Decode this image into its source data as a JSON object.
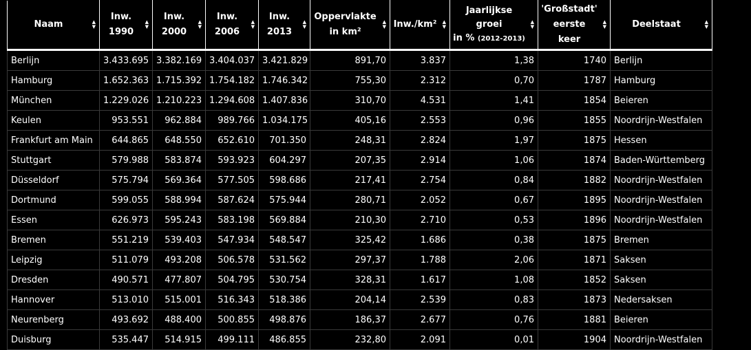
{
  "table": {
    "headers": [
      {
        "line1": "Naam",
        "line2": "",
        "sub": ""
      },
      {
        "line1": "Inw.",
        "line2": "1990",
        "sub": ""
      },
      {
        "line1": "Inw.",
        "line2": "2000",
        "sub": ""
      },
      {
        "line1": "Inw.",
        "line2": "2006",
        "sub": ""
      },
      {
        "line1": "Inw.",
        "line2": "2013",
        "sub": ""
      },
      {
        "line1": "Oppervlakte",
        "line2": "in km²",
        "sub": ""
      },
      {
        "line1": "Inw./km²",
        "line2": "",
        "sub": ""
      },
      {
        "line1": "Jaarlijkse",
        "line2": "groei",
        "line3": "in %",
        "sub": "(2012-2013)"
      },
      {
        "line1": "'Großstadt'",
        "line2": "eerste keer",
        "sub": ""
      },
      {
        "line1": "Deelstaat",
        "line2": "",
        "sub": ""
      }
    ],
    "rows": [
      [
        "Berlijn",
        "3.433.695",
        "3.382.169",
        "3.404.037",
        "3.421.829",
        "891,70",
        "3.837",
        "1,38",
        "1740",
        "Berlijn"
      ],
      [
        "Hamburg",
        "1.652.363",
        "1.715.392",
        "1.754.182",
        "1.746.342",
        "755,30",
        "2.312",
        "0,70",
        "1787",
        "Hamburg"
      ],
      [
        "München",
        "1.229.026",
        "1.210.223",
        "1.294.608",
        "1.407.836",
        "310,70",
        "4.531",
        "1,41",
        "1854",
        "Beieren"
      ],
      [
        "Keulen",
        "953.551",
        "962.884",
        "989.766",
        "1.034.175",
        "405,16",
        "2.553",
        "0,96",
        "1855",
        "Noordrijn-Westfalen"
      ],
      [
        "Frankfurt am Main",
        "644.865",
        "648.550",
        "652.610",
        "701.350",
        "248,31",
        "2.824",
        "1,97",
        "1875",
        "Hessen"
      ],
      [
        "Stuttgart",
        "579.988",
        "583.874",
        "593.923",
        "604.297",
        "207,35",
        "2.914",
        "1,06",
        "1874",
        "Baden-Württemberg"
      ],
      [
        "Düsseldorf",
        "575.794",
        "569.364",
        "577.505",
        "598.686",
        "217,41",
        "2.754",
        "0,84",
        "1882",
        "Noordrijn-Westfalen"
      ],
      [
        "Dortmund",
        "599.055",
        "588.994",
        "587.624",
        "575.944",
        "280,71",
        "2.052",
        "0,67",
        "1895",
        "Noordrijn-Westfalen"
      ],
      [
        "Essen",
        "626.973",
        "595.243",
        "583.198",
        "569.884",
        "210,30",
        "2.710",
        "0,53",
        "1896",
        "Noordrijn-Westfalen"
      ],
      [
        "Bremen",
        "551.219",
        "539.403",
        "547.934",
        "548.547",
        "325,42",
        "1.686",
        "0,38",
        "1875",
        "Bremen"
      ],
      [
        "Leipzig",
        "511.079",
        "493.208",
        "506.578",
        "531.562",
        "297,37",
        "1.788",
        "2,06",
        "1871",
        "Saksen"
      ],
      [
        "Dresden",
        "490.571",
        "477.807",
        "504.795",
        "530.754",
        "328,31",
        "1.617",
        "1,08",
        "1852",
        "Saksen"
      ],
      [
        "Hannover",
        "513.010",
        "515.001",
        "516.343",
        "518.386",
        "204,14",
        "2.539",
        "0,83",
        "1873",
        "Nedersaksen"
      ],
      [
        "Neurenberg",
        "493.692",
        "488.400",
        "500.855",
        "498.876",
        "186,37",
        "2.677",
        "0,76",
        "1881",
        "Beieren"
      ],
      [
        "Duisburg",
        "535.447",
        "514.915",
        "499.111",
        "486.855",
        "232,80",
        "2.091",
        "0,01",
        "1904",
        "Noordrijn-Westfalen"
      ]
    ]
  },
  "colors": {
    "background": "#000000",
    "text": "#ffffff",
    "grid": "#3a3a3a"
  }
}
